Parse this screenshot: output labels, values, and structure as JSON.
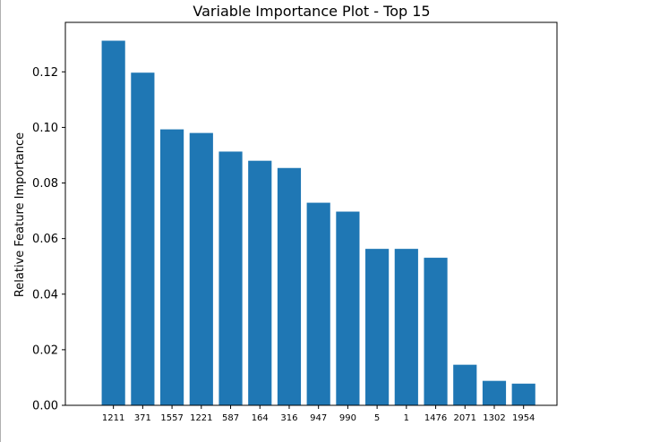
{
  "chart_data": {
    "type": "bar",
    "title": "Variable Importance Plot - Top 15",
    "xlabel": "",
    "ylabel": "Relative Feature Importance",
    "categories": [
      "1211",
      "371",
      "1557",
      "1221",
      "587",
      "164",
      "316",
      "947",
      "990",
      "5",
      "1",
      "1476",
      "2071",
      "1302",
      "1954"
    ],
    "values": [
      0.1312,
      0.1197,
      0.0993,
      0.098,
      0.0913,
      0.088,
      0.0854,
      0.0729,
      0.0697,
      0.0563,
      0.0563,
      0.0531,
      0.0146,
      0.0088,
      0.0078
    ],
    "yticks": [
      "0.00",
      "0.02",
      "0.04",
      "0.06",
      "0.08",
      "0.10",
      "0.12"
    ],
    "ylim": [
      0,
      0.1378
    ],
    "bar_color": "#1f77b4",
    "grid": false,
    "legend": "none"
  }
}
